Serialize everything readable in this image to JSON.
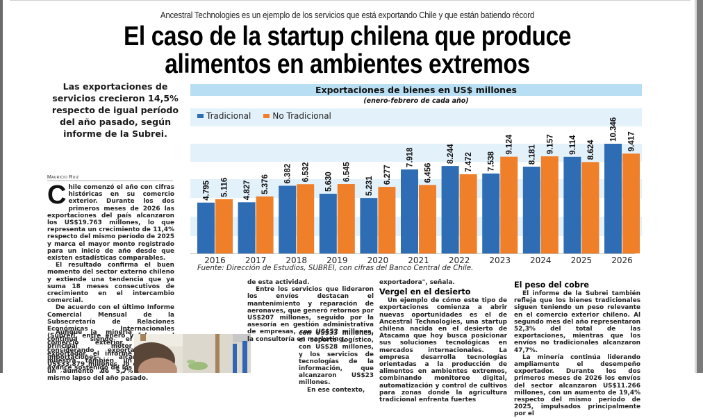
{
  "article": {
    "kicker": "Ancestral Technologies es un ejemplo de los servicios que está exportando Chile y que están batiendo récord",
    "headline_line1": "El caso de la startup chilena que produce",
    "headline_line2": "alimentos en ambientes extremos",
    "deck": "Las exportaciones de servicios crecieron 14,5% respecto de igual período del año pasado, según informe de la Subrei.",
    "byline": "Mauricio Ruiz",
    "col_a": {
      "dropcap": "C",
      "p1": "hile comenzó el año con cifras históricas en su comercio exterior. Durante los dos primeros meses de 2026 las exportaciones del país alcanzaron los US$19.763 millones, lo que representa un crecimiento de 11,4% respecto del mismo período de 2025 y marca el mayor monto registrado para un inicio de año desde que existen estadísticas comparables.",
      "p2": "El resultado confirma el buen momento del sector externo chileno y extiende una tendencia que ya suma 18 meses consecutivos de crecimiento en el intercambio comercial.",
      "p3": "De acuerdo con el último Informe Comercial Mensual de la Subsecretaría de Relaciones Económicas Internacionales (Subrei), entre enero y febrero el comercio exterior total -considerando exportaciones e importaciones- alcanzó los US$33.879 millones, lo que implica un aumento de 5,7% frente al mismo lapso del año pasado.",
      "p4": "Aunque la minería continúa siendo el principal motor exportador, el informe muestra también un avance sostenido de los envíos no tradicionales y, en particular, de los servicios, un segmento"
    },
    "col_b": {
      "p1": "de esta actividad.",
      "p2": "Entre los servicios que lideraron los envíos destacan el mantenimiento y reparación de aeronaves, que generó retornos por US$207 millones, seguido por la asesoría en gestión administrativa de empresas, con US$52 millones, la consultoría en marketing,",
      "p3": "con US$33 millones, el soporte logístico, con US$28 millones, y los servicios de tecnologías de la información, que alcanzaron US$23 millones.",
      "p4": "En ese contexto,"
    },
    "col_c": {
      "p1": "exportadora\", señala.",
      "subhead": "Vergel en el desierto",
      "p2": "Un ejemplo de cómo este tipo de exportaciones comienza a abrir nuevas oportunidades es el de Ancestral Technologies, una startup chilena nacida en el desierto de Atacama que hoy busca posicionar sus soluciones tecnológicas en mercados internacionales. La empresa desarrolla tecnologías orientadas a la producción de alimentos en ambientes extremos, combinando monitoreo digital, automatización y control de cultivos para zonas donde la agricultura tradicional enfrenta fuertes"
    },
    "col_d": {
      "subhead": "El peso del cobre",
      "p1": "El informe de la Subrei también refleja que los bienes tradicionales siguen teniendo un peso relevante en el comercio exterior chileno. Al segundo mes del año representaron 52,3% del total de las exportaciones, mientras que los envíos no tradicionales alcanzaron 47,7%.",
      "p2": "La minería continúa liderando ampliamente el desempeño exportador. Durante los dos primeros meses de 2026 los envíos del sector alcanzaron US$11.266 millones, con un aumento de 19,4% respecto del mismo período de 2025, impulsados principalmente por el"
    }
  },
  "chart_data": {
    "type": "bar",
    "title": "Exportaciones de bienes en US$ millones",
    "subtitle": "(enero-febrero de cada año)",
    "source": "Fuente: Dirección de Estudios, SUBREI, con cifras del Banco Central de Chile.",
    "categories": [
      "2016",
      "2017",
      "2018",
      "2019",
      "2020",
      "2021",
      "2022",
      "2023",
      "2024",
      "2025",
      "2026"
    ],
    "series": [
      {
        "name": "Tradicional",
        "color": "#2e6db4",
        "values": [
          4795,
          4827,
          6382,
          5630,
          5231,
          7918,
          8244,
          7538,
          8181,
          9114,
          10346
        ],
        "labels": [
          "4.795",
          "4.827",
          "6.382",
          "5.630",
          "5.231",
          "7.918",
          "8.244",
          "7.538",
          "8.181",
          "9.114",
          "10.346"
        ]
      },
      {
        "name": "No Tradicional",
        "color": "#f07f2a",
        "values": [
          5116,
          5376,
          6532,
          6545,
          6277,
          6456,
          7472,
          9124,
          9157,
          8624,
          9417
        ],
        "labels": [
          "5.116",
          "5.376",
          "6.532",
          "6.545",
          "6.277",
          "6.456",
          "7.472",
          "9.124",
          "9.157",
          "8.624",
          "9.417"
        ]
      }
    ],
    "ylim": [
      0,
      11000
    ],
    "legend": "top-left",
    "grid": "alternating horizontal bands"
  },
  "colors": {
    "band": "#e3f1fb",
    "title_band": "#b7def3"
  }
}
